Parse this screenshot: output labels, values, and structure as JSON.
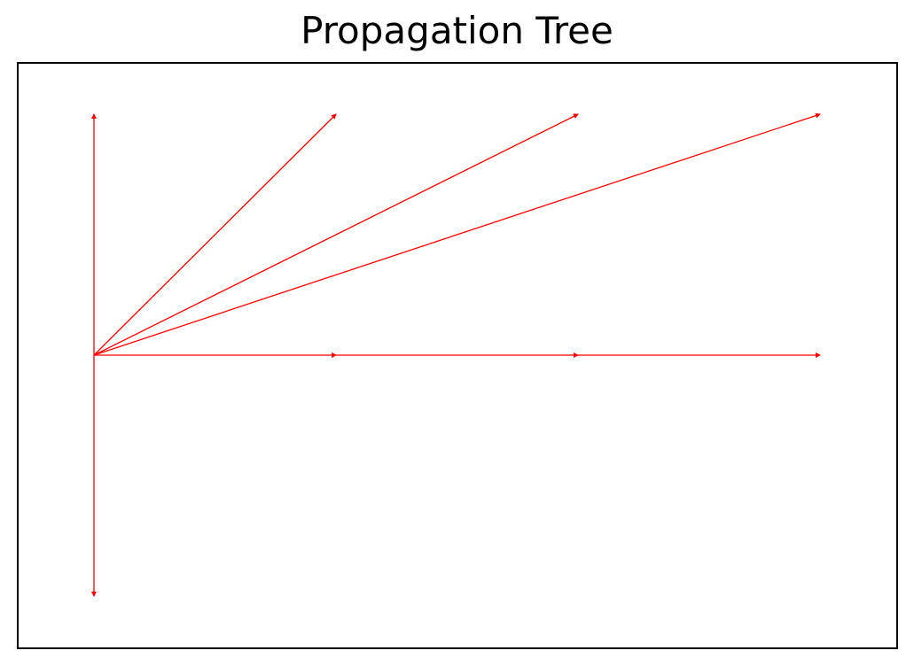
{
  "title": "Propagation Tree",
  "edge_color": "#ff0000",
  "frame_color": "#000000",
  "nodes": [
    {
      "id": "root",
      "x": 0,
      "y": 0
    },
    {
      "id": "up",
      "x": 0,
      "y": 1
    },
    {
      "id": "down",
      "x": 0,
      "y": -1
    },
    {
      "id": "a1",
      "x": 1,
      "y": 1
    },
    {
      "id": "a2",
      "x": 2,
      "y": 1
    },
    {
      "id": "a3",
      "x": 3,
      "y": 1
    },
    {
      "id": "b1",
      "x": 1,
      "y": 0
    },
    {
      "id": "b2",
      "x": 2,
      "y": 0
    },
    {
      "id": "b3",
      "x": 3,
      "y": 0
    }
  ],
  "edges": [
    {
      "from": "root",
      "to": "up"
    },
    {
      "from": "root",
      "to": "down"
    },
    {
      "from": "root",
      "to": "a1"
    },
    {
      "from": "root",
      "to": "a2"
    },
    {
      "from": "root",
      "to": "a3"
    },
    {
      "from": "root",
      "to": "b1"
    },
    {
      "from": "b1",
      "to": "b2"
    },
    {
      "from": "b2",
      "to": "b3"
    }
  ]
}
